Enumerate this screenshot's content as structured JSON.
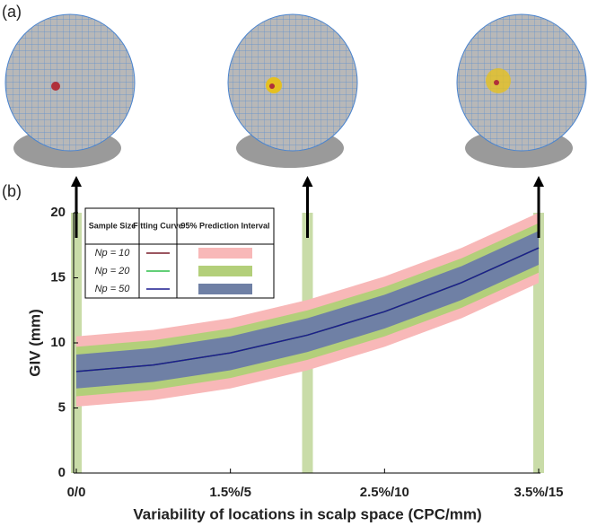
{
  "panel_a_label": "(a)",
  "chart_data": {
    "type": "line",
    "panel_label": "(b)",
    "x_label": "Variability of locations in scalp space (CPC/mm)",
    "y_label": "GIV (mm)",
    "xlim": [
      0,
      15
    ],
    "ylim": [
      0,
      20
    ],
    "xticks": [
      {
        "value": 0,
        "label": "0/0"
      },
      {
        "value": 5,
        "label": "1.5%/5"
      },
      {
        "value": 10,
        "label": "2.5%/10"
      },
      {
        "value": 15,
        "label": "3.5%/15"
      }
    ],
    "yticks": [
      0,
      5,
      10,
      15,
      20
    ],
    "highlight_x": [
      0,
      7.5,
      15
    ],
    "highlight_color": "#c9dca8",
    "legend_headers": [
      "Sample Size",
      "Fitting Curve",
      "95% Prediction Interval"
    ],
    "x": [
      0,
      2.5,
      5,
      7.5,
      10,
      12.5,
      15
    ],
    "series": [
      {
        "name": "Np = 10",
        "color": "#7a1f2b",
        "band_color": "#f8b8b8",
        "values": [
          7.8,
          8.3,
          9.23,
          10.6,
          12.4,
          14.63,
          17.3
        ],
        "lower": [
          5.1,
          5.6,
          6.5,
          7.9,
          9.7,
          11.9,
          14.6
        ],
        "upper": [
          10.5,
          11.0,
          11.9,
          13.3,
          15.1,
          17.3,
          20.0
        ]
      },
      {
        "name": "Np = 20",
        "color": "#2fbf4a",
        "band_color": "#b3cf7a",
        "values": [
          7.8,
          8.3,
          9.23,
          10.6,
          12.4,
          14.63,
          17.3
        ],
        "lower": [
          5.9,
          6.4,
          7.3,
          8.7,
          10.5,
          12.7,
          15.4
        ],
        "upper": [
          9.7,
          10.2,
          11.1,
          12.5,
          14.3,
          16.5,
          19.2
        ]
      },
      {
        "name": "Np = 50",
        "color": "#1c1c8f",
        "band_color": "#6f80a5",
        "values": [
          7.8,
          8.3,
          9.23,
          10.6,
          12.4,
          14.63,
          17.3
        ],
        "lower": [
          6.5,
          7.0,
          7.9,
          9.3,
          11.1,
          13.3,
          16.0
        ],
        "upper": [
          9.1,
          9.6,
          10.5,
          11.9,
          13.7,
          15.9,
          18.6
        ]
      }
    ]
  }
}
